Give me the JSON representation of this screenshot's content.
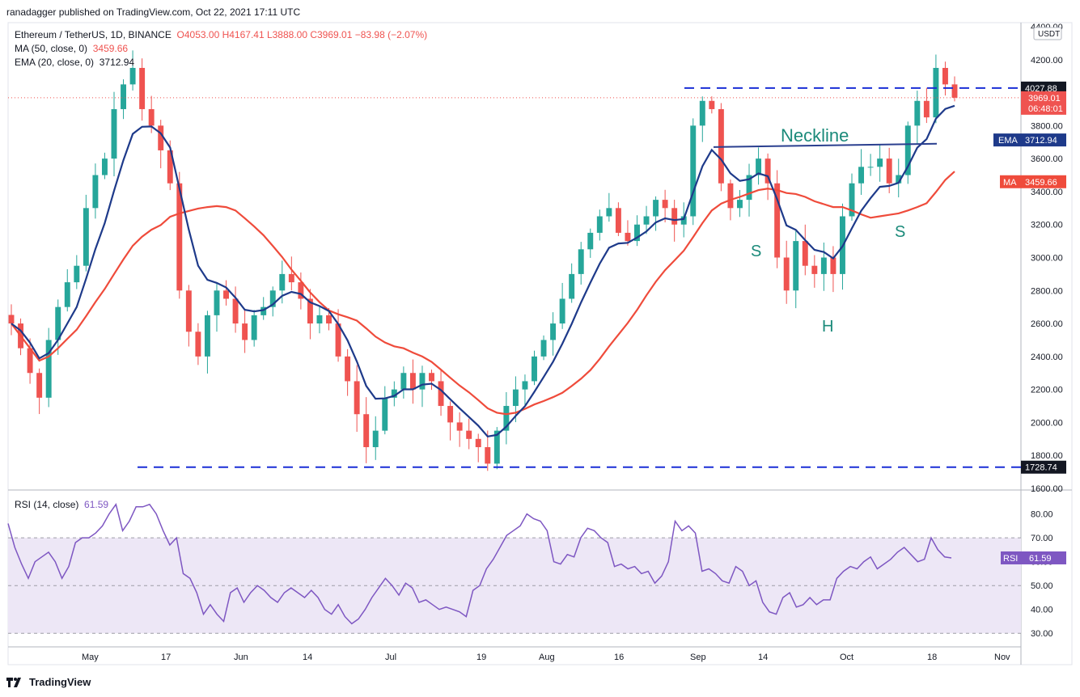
{
  "publisher": "ranadagger published on TradingView.com, Oct 22, 2021 17:11 UTC",
  "legend": {
    "symbol": "Ethereum / TetherUS, 1D, BINANCE",
    "ohlc": "O4053.00  H4167.41  L3888.00  C3969.01  −83.98 (−2.07%)",
    "ma_label": "MA (50, close, 0)",
    "ma_value": "3459.66",
    "ema_label": "EMA (20, close, 0)",
    "ema_value": "3712.94",
    "rsi_label": "RSI (14, close)",
    "rsi_value": "61.59"
  },
  "currency_badge": "USDT",
  "brand": "TradingView",
  "colors": {
    "up": "#26a69a",
    "down": "#ef5350",
    "ema": "#1e3a8a",
    "ma": "#ef4b3b",
    "rsi": "#7e57c2",
    "rsi_band": "#ede7f6",
    "level": "#1a2fd6",
    "annot": "#1b8a7a"
  },
  "chart_data": [
    {
      "type": "candlestick",
      "title": "Ethereum / TetherUS, 1D, BINANCE",
      "ylim": [
        1600,
        4400
      ],
      "y_ticks": [
        "1600.00",
        "1800.00",
        "2000.00",
        "2200.00",
        "2400.00",
        "2600.00",
        "2800.00",
        "3000.00",
        "3200.00",
        "3400.00",
        "3600.00",
        "3800.00",
        "4000.00",
        "4200.00",
        "4400.00"
      ],
      "x_ticks": [
        "May",
        "17",
        "Jun",
        "14",
        "Jul",
        "19",
        "Aug",
        "16",
        "Sep",
        "14",
        "Oct",
        "18",
        "Nov"
      ],
      "close_path": [
        2600,
        2450,
        2300,
        2150,
        2500,
        2700,
        2850,
        2950,
        3300,
        3500,
        3600,
        3900,
        4050,
        4150,
        3900,
        3800,
        3650,
        3450,
        2800,
        2550,
        2400,
        2650,
        2800,
        2750,
        2600,
        2500,
        2650,
        2700,
        2800,
        2900,
        2850,
        2750,
        2600,
        2650,
        2600,
        2400,
        2250,
        2050,
        1850,
        1950,
        2150,
        2200,
        2300,
        2200,
        2300,
        2250,
        2100,
        2000,
        1950,
        1900,
        1850,
        1750,
        1950,
        2100,
        2200,
        2250,
        2400,
        2500,
        2600,
        2750,
        2900,
        3050,
        3150,
        3250,
        3300,
        3150,
        3100,
        3200,
        3250,
        3350,
        3300,
        3200,
        3250,
        3800,
        3950,
        3900,
        3450,
        3300,
        3350,
        3500,
        3600,
        3450,
        3000,
        2800,
        3100,
        2950,
        2900,
        3000,
        2900,
        3250,
        3450,
        3550,
        3550,
        3600,
        3450,
        3500,
        3800,
        3950,
        3850,
        4150,
        4050,
        3969.01
      ],
      "levels": [
        {
          "label": "4027.88",
          "value": 4027.88
        },
        {
          "label": "1728.74",
          "value": 1728.74
        }
      ],
      "last_price": "3969.01",
      "countdown": "06:48:01",
      "ema_badge": {
        "label": "EMA",
        "value": "3712.94"
      },
      "ma_badge": {
        "label": "MA",
        "value": "3459.66"
      },
      "annotations": [
        {
          "text": "Neckline"
        },
        {
          "text": "S"
        },
        {
          "text": "H"
        },
        {
          "text": "S"
        }
      ]
    },
    {
      "type": "line",
      "title": "RSI (14, close)",
      "ylim": [
        25,
        88
      ],
      "y_ticks": [
        "30.00",
        "40.00",
        "50.00",
        "60.00",
        "70.00",
        "80.00"
      ],
      "band": [
        30,
        70
      ],
      "values": [
        76,
        66,
        59,
        53,
        60,
        62,
        64,
        60,
        53,
        58,
        68,
        70,
        70,
        72,
        75,
        80,
        84,
        73,
        77,
        83,
        83,
        84,
        80,
        73,
        67,
        70,
        55,
        53,
        47,
        38,
        42,
        38,
        35,
        47,
        49,
        43,
        47,
        50,
        48,
        45,
        43,
        47,
        49,
        47,
        45,
        48,
        45,
        40,
        38,
        42,
        37,
        34,
        36,
        40,
        45,
        49,
        53,
        50,
        46,
        51,
        49,
        43,
        44,
        42,
        40,
        41,
        40,
        39,
        37,
        48,
        50,
        57,
        61,
        66,
        71,
        73,
        75,
        80,
        78,
        77,
        73,
        60,
        59,
        63,
        62,
        70,
        74,
        73,
        70,
        68,
        58,
        59,
        57,
        58,
        55,
        56,
        51,
        54,
        60,
        77,
        73,
        75,
        72,
        56,
        57,
        55,
        52,
        51,
        58,
        56,
        50,
        52,
        43,
        39,
        38,
        45,
        47,
        41,
        42,
        45,
        42,
        44,
        44,
        53,
        56,
        58,
        57,
        60,
        62,
        57,
        59,
        61,
        64,
        66,
        63,
        60,
        61,
        70,
        65,
        62,
        61.59
      ],
      "last_value": "61.59"
    }
  ]
}
